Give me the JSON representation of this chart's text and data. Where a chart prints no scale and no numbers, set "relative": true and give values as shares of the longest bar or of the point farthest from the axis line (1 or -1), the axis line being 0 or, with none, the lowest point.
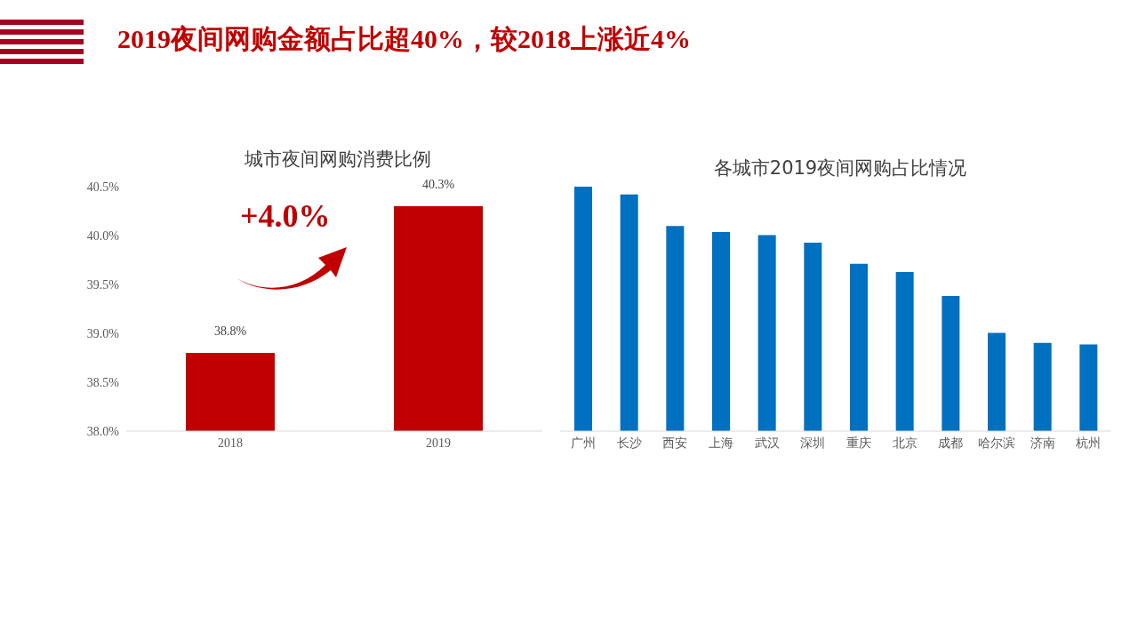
{
  "chart_data": [
    {
      "type": "bar",
      "title": "2019夜间网购金额占比超40%，较2018上涨近4%",
      "subtitle": "城市夜间网购消费比例",
      "categories": [
        "2018",
        "2019"
      ],
      "values": [
        38.8,
        40.3
      ],
      "value_labels": [
        "38.8%",
        "40.3%"
      ],
      "color": "#c00000",
      "ylim": [
        38,
        40.5
      ],
      "yticks": [
        {
          "value": 38,
          "label": "38.0%"
        },
        {
          "value": 38.5,
          "label": "38.5%"
        },
        {
          "value": 39,
          "label": "39.0%"
        },
        {
          "value": 39.5,
          "label": "39.5%"
        },
        {
          "value": 40,
          "label": "40.0%"
        },
        {
          "value": 40.5,
          "label": "40.5%"
        }
      ],
      "annotations": [
        "+4.0%"
      ]
    },
    {
      "type": "bar",
      "title": "各城市2019夜间网购占比情况",
      "categories": [
        "广州",
        "长沙",
        "西安",
        "上海",
        "武汉",
        "深圳",
        "重庆",
        "北京",
        "成都",
        "哈尔滨",
        "济南",
        "杭州"
      ],
      "values": [
        1,
        0.968,
        0.839,
        0.815,
        0.802,
        0.771,
        0.685,
        0.651,
        0.553,
        0.402,
        0.361,
        0.355
      ],
      "color": "#0070c0",
      "relative": true
    }
  ]
}
